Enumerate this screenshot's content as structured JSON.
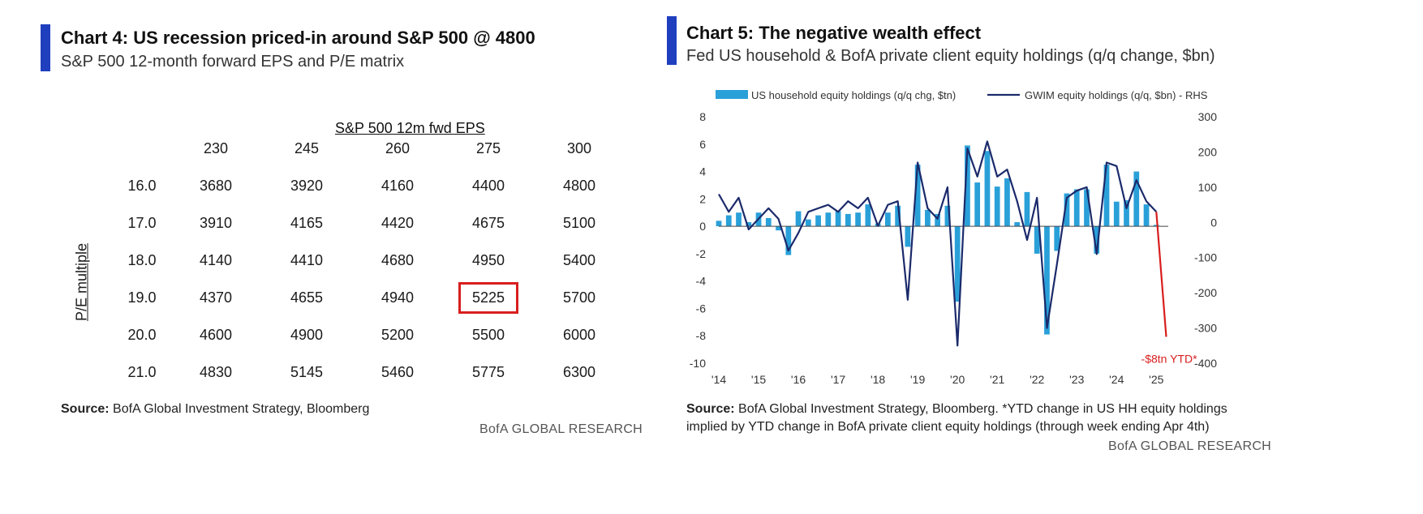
{
  "left_panel": {
    "title": "Chart 4: US recession priced-in around S&P 500 @ 4800",
    "subtitle": "S&P 500 12-month forward EPS and P/E matrix",
    "source_label": "Source:",
    "source_text": "BofA Global Investment Strategy, Bloomberg",
    "brand": "BofA GLOBAL RESEARCH",
    "accent_color": "#1f3fbf",
    "highlight_color": "#d81e1e"
  },
  "right_panel": {
    "title": "Chart 5: The negative wealth effect",
    "subtitle": "Fed US household & BofA private client equity holdings (q/q change, $bn)",
    "source_label": "Source:",
    "source_text_line1": "BofA Global Investment Strategy, Bloomberg. *YTD change in US HH equity holdings",
    "source_text_line2": "implied by YTD change in BofA private client equity holdings (through week ending Apr 4th)",
    "brand": "BofA GLOBAL RESEARCH",
    "accent_color": "#1f3fbf"
  },
  "chart_data": [
    {
      "type": "table",
      "title": "Chart 4: US recession priced-in around S&P 500 @ 4800",
      "subtitle": "S&P 500 12-month forward EPS and P/E matrix",
      "column_header": "S&P 500 12m fwd EPS",
      "row_header": "P/E multiple",
      "columns": [
        "230",
        "245",
        "260",
        "275",
        "300"
      ],
      "rows": [
        {
          "pe": "16.0",
          "values": [
            "3680",
            "3920",
            "4160",
            "4400",
            "4800"
          ]
        },
        {
          "pe": "17.0",
          "values": [
            "3910",
            "4165",
            "4420",
            "4675",
            "5100"
          ]
        },
        {
          "pe": "18.0",
          "values": [
            "4140",
            "4410",
            "4680",
            "4950",
            "5400"
          ]
        },
        {
          "pe": "19.0",
          "values": [
            "4370",
            "4655",
            "4940",
            "5225",
            "5700"
          ]
        },
        {
          "pe": "20.0",
          "values": [
            "4600",
            "4900",
            "5200",
            "5500",
            "6000"
          ]
        },
        {
          "pe": "21.0",
          "values": [
            "4830",
            "5145",
            "5460",
            "5775",
            "6300"
          ]
        }
      ],
      "highlight_cell": {
        "row": 3,
        "col": 3
      }
    },
    {
      "type": "bar",
      "title": "Chart 5: The negative wealth effect",
      "subtitle": "Fed US household & BofA private client equity holdings (q/q change, $bn)",
      "x_start_year": 2014,
      "x_end_year": 2025.3,
      "x_ticks": [
        "'14",
        "'15",
        "'16",
        "'17",
        "'18",
        "'19",
        "'20",
        "'21",
        "'22",
        "'23",
        "'24",
        "'25"
      ],
      "ylim_left": [
        -10,
        8
      ],
      "yticks_left": [
        "8",
        "6",
        "4",
        "2",
        "0",
        "-2",
        "-4",
        "-6",
        "-8",
        "-10"
      ],
      "ylim_right": [
        -400,
        300
      ],
      "yticks_right": [
        "300",
        "200",
        "100",
        "0",
        "-100",
        "-200",
        "-300",
        "-400"
      ],
      "legend_position": "top",
      "grid": false,
      "series": [
        {
          "name": "US household equity holdings (q/q chg, $tn)",
          "kind": "bar",
          "axis": "left",
          "color": "#2aa0d9",
          "x": [
            2014.0,
            2014.25,
            2014.5,
            2014.75,
            2015.0,
            2015.25,
            2015.5,
            2015.75,
            2016.0,
            2016.25,
            2016.5,
            2016.75,
            2017.0,
            2017.25,
            2017.5,
            2017.75,
            2018.0,
            2018.25,
            2018.5,
            2018.75,
            2019.0,
            2019.25,
            2019.5,
            2019.75,
            2020.0,
            2020.25,
            2020.5,
            2020.75,
            2021.0,
            2021.25,
            2021.5,
            2021.75,
            2022.0,
            2022.25,
            2022.5,
            2022.75,
            2023.0,
            2023.25,
            2023.5,
            2023.75,
            2024.0,
            2024.25,
            2024.5,
            2024.75,
            2025.0
          ],
          "values": [
            0.4,
            0.8,
            1.0,
            0.3,
            1.0,
            0.6,
            -0.3,
            -2.1,
            1.1,
            0.5,
            0.8,
            1.0,
            1.1,
            0.9,
            1.0,
            1.6,
            0.2,
            1.0,
            1.5,
            -1.5,
            4.5,
            1.2,
            0.9,
            1.5,
            -5.5,
            5.9,
            3.2,
            5.5,
            2.9,
            3.5,
            0.3,
            2.5,
            -2.0,
            -7.9,
            -1.8,
            2.4,
            2.7,
            2.7,
            -2.0,
            4.5,
            1.8,
            1.9,
            4.0,
            1.6,
            0.1
          ]
        },
        {
          "name": "GWIM equity holdings (q/q, $bn) - RHS",
          "kind": "line",
          "axis": "right",
          "color": "#1b2a6b",
          "x": [
            2014.0,
            2014.25,
            2014.5,
            2014.75,
            2015.0,
            2015.25,
            2015.5,
            2015.75,
            2016.0,
            2016.25,
            2016.5,
            2016.75,
            2017.0,
            2017.25,
            2017.5,
            2017.75,
            2018.0,
            2018.25,
            2018.5,
            2018.75,
            2019.0,
            2019.25,
            2019.5,
            2019.75,
            2020.0,
            2020.25,
            2020.5,
            2020.75,
            2021.0,
            2021.25,
            2021.5,
            2021.75,
            2022.0,
            2022.25,
            2022.5,
            2022.75,
            2023.0,
            2023.25,
            2023.5,
            2023.75,
            2024.0,
            2024.25,
            2024.5,
            2024.75,
            2025.0
          ],
          "values": [
            80,
            30,
            70,
            -20,
            10,
            40,
            10,
            -80,
            -30,
            30,
            40,
            50,
            30,
            60,
            40,
            70,
            -10,
            50,
            60,
            -220,
            170,
            40,
            10,
            100,
            -350,
            210,
            130,
            230,
            130,
            150,
            60,
            -50,
            70,
            -300,
            -120,
            70,
            90,
            100,
            -90,
            170,
            160,
            40,
            120,
            60,
            30
          ]
        },
        {
          "name": "-$8tn YTD*",
          "kind": "line",
          "axis": "right",
          "color": "#d81e1e",
          "x": [
            2025.0,
            2025.25
          ],
          "values": [
            30,
            -325
          ]
        }
      ]
    }
  ]
}
